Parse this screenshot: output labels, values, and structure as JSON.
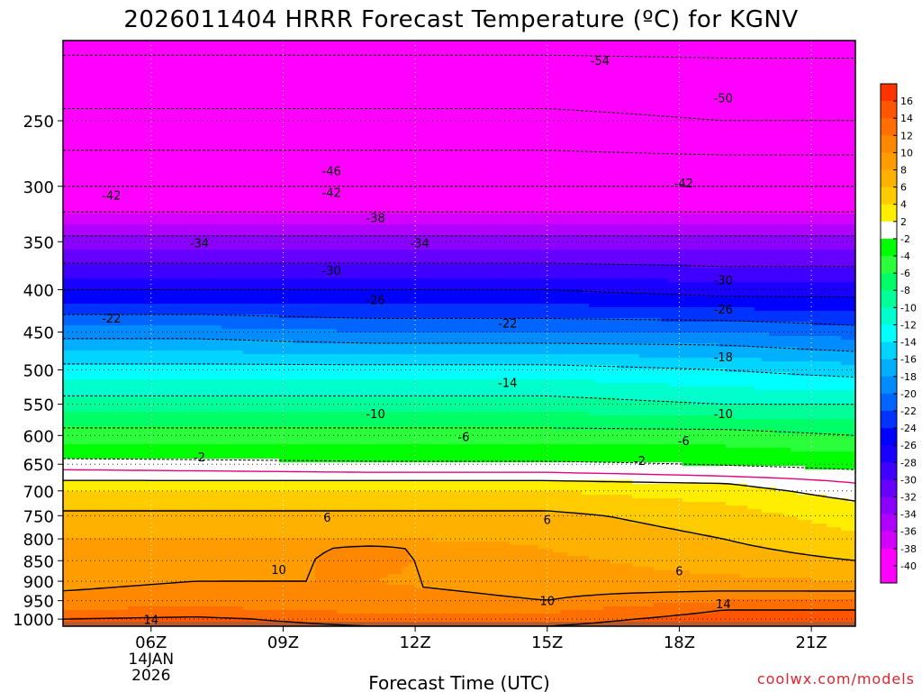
{
  "chart_data": {
    "type": "heatmap",
    "title": "2026011404 HRRR Forecast Temperature (ºC) for KGNV",
    "xlabel": "Forecast Time (UTC)",
    "ylabel": "",
    "x_ticks": [
      {
        "hour": 6,
        "label": "06Z",
        "sub1": "14JAN",
        "sub2": "2026"
      },
      {
        "hour": 9,
        "label": "09Z",
        "sub1": "",
        "sub2": ""
      },
      {
        "hour": 12,
        "label": "12Z",
        "sub1": "",
        "sub2": ""
      },
      {
        "hour": 15,
        "label": "15Z",
        "sub1": "",
        "sub2": ""
      },
      {
        "hour": 18,
        "label": "18Z",
        "sub1": "",
        "sub2": ""
      },
      {
        "hour": 21,
        "label": "21Z",
        "sub1": "",
        "sub2": ""
      }
    ],
    "xlim": [
      4,
      22
    ],
    "y_ticks": [
      250,
      300,
      350,
      400,
      450,
      500,
      550,
      600,
      650,
      700,
      750,
      800,
      850,
      900,
      950,
      1000
    ],
    "ylim_hpa": [
      1020,
      200
    ],
    "y_scale": "log-pressure",
    "grid": true,
    "colorbar": {
      "levels": [
        16,
        14,
        12,
        10,
        8,
        6,
        4,
        2,
        -2,
        -4,
        -6,
        -8,
        -10,
        -12,
        -14,
        -16,
        -18,
        -20,
        -22,
        -24,
        -26,
        -28,
        -30,
        -32,
        -34,
        -36,
        -38,
        -40
      ],
      "bin_colors": [
        "#ff3300",
        "#ff5500",
        "#ff6e00",
        "#ff8800",
        "#ff9d00",
        "#ffb100",
        "#ffcc00",
        "#ffee00",
        "#ffffff",
        "#00ff00",
        "#2bff3b",
        "#00ff66",
        "#00ff99",
        "#00ffcc",
        "#00ffff",
        "#00d4ff",
        "#00b0ff",
        "#008cff",
        "#0066ff",
        "#0033ff",
        "#0000ff",
        "#1a00ff",
        "#3f00ff",
        "#6600ff",
        "#8c00ff",
        "#b000ff",
        "#d400ff",
        "#ff00ff",
        "#ff00ff"
      ]
    },
    "ground_color": "#b05a36",
    "temperature_profiles": [
      {
        "hour": 4,
        "levels": [
          {
            "p": 1020,
            "t": 15
          },
          {
            "p": 1000,
            "t": 14
          },
          {
            "p": 975,
            "t": 12
          },
          {
            "p": 950,
            "t": 11
          },
          {
            "p": 925,
            "t": 10
          },
          {
            "p": 900,
            "t": 9.5
          },
          {
            "p": 875,
            "t": 9
          },
          {
            "p": 850,
            "t": 8.5
          },
          {
            "p": 800,
            "t": 8
          },
          {
            "p": 750,
            "t": 6.5
          },
          {
            "p": 700,
            "t": 4
          },
          {
            "p": 680,
            "t": 2
          },
          {
            "p": 660,
            "t": 0
          },
          {
            "p": 640,
            "t": -2
          },
          {
            "p": 600,
            "t": -5
          },
          {
            "p": 550,
            "t": -9
          },
          {
            "p": 500,
            "t": -13
          },
          {
            "p": 450,
            "t": -19
          },
          {
            "p": 400,
            "t": -26
          },
          {
            "p": 350,
            "t": -33
          },
          {
            "p": 300,
            "t": -42
          },
          {
            "p": 250,
            "t": -49
          },
          {
            "p": 200,
            "t": -55
          }
        ]
      },
      {
        "hour": 7,
        "levels": [
          {
            "p": 1020,
            "t": 15
          },
          {
            "p": 1000,
            "t": 14.5
          },
          {
            "p": 975,
            "t": 12.5
          },
          {
            "p": 950,
            "t": 11
          },
          {
            "p": 925,
            "t": 10.5
          },
          {
            "p": 900,
            "t": 10
          },
          {
            "p": 875,
            "t": 9.5
          },
          {
            "p": 850,
            "t": 9
          },
          {
            "p": 800,
            "t": 8
          },
          {
            "p": 750,
            "t": 6.5
          },
          {
            "p": 700,
            "t": 4
          },
          {
            "p": 680,
            "t": 2
          },
          {
            "p": 662,
            "t": 0
          },
          {
            "p": 642,
            "t": -2
          },
          {
            "p": 600,
            "t": -5
          },
          {
            "p": 550,
            "t": -9
          },
          {
            "p": 500,
            "t": -13
          },
          {
            "p": 450,
            "t": -19
          },
          {
            "p": 400,
            "t": -26
          },
          {
            "p": 350,
            "t": -33
          },
          {
            "p": 300,
            "t": -42
          },
          {
            "p": 250,
            "t": -49
          },
          {
            "p": 200,
            "t": -55
          }
        ]
      },
      {
        "hour": 11,
        "levels": [
          {
            "p": 1020,
            "t": 14
          },
          {
            "p": 1000,
            "t": 13
          },
          {
            "p": 975,
            "t": 11.5
          },
          {
            "p": 950,
            "t": 11
          },
          {
            "p": 925,
            "t": 10.5
          },
          {
            "p": 900,
            "t": 10
          },
          {
            "p": 850,
            "t": 10.5
          },
          {
            "p": 820,
            "t": 10.5
          },
          {
            "p": 800,
            "t": 8
          },
          {
            "p": 750,
            "t": 6.5
          },
          {
            "p": 700,
            "t": 4
          },
          {
            "p": 680,
            "t": 2
          },
          {
            "p": 665,
            "t": 0
          },
          {
            "p": 645,
            "t": -2
          },
          {
            "p": 600,
            "t": -5
          },
          {
            "p": 550,
            "t": -9
          },
          {
            "p": 500,
            "t": -13
          },
          {
            "p": 450,
            "t": -20
          },
          {
            "p": 400,
            "t": -26
          },
          {
            "p": 350,
            "t": -33
          },
          {
            "p": 300,
            "t": -42
          },
          {
            "p": 250,
            "t": -49
          },
          {
            "p": 200,
            "t": -55
          }
        ]
      },
      {
        "hour": 15,
        "levels": [
          {
            "p": 1020,
            "t": 14
          },
          {
            "p": 1000,
            "t": 13
          },
          {
            "p": 975,
            "t": 11.5
          },
          {
            "p": 950,
            "t": 10
          },
          {
            "p": 925,
            "t": 9.5
          },
          {
            "p": 900,
            "t": 9
          },
          {
            "p": 850,
            "t": 8.5
          },
          {
            "p": 800,
            "t": 7.5
          },
          {
            "p": 750,
            "t": 6.5
          },
          {
            "p": 700,
            "t": 4
          },
          {
            "p": 680,
            "t": 2
          },
          {
            "p": 665,
            "t": 0
          },
          {
            "p": 645,
            "t": -2
          },
          {
            "p": 600,
            "t": -5
          },
          {
            "p": 550,
            "t": -9
          },
          {
            "p": 500,
            "t": -13
          },
          {
            "p": 450,
            "t": -20
          },
          {
            "p": 400,
            "t": -26
          },
          {
            "p": 350,
            "t": -33
          },
          {
            "p": 300,
            "t": -42
          },
          {
            "p": 250,
            "t": -49
          },
          {
            "p": 200,
            "t": -55
          }
        ]
      },
      {
        "hour": 19,
        "levels": [
          {
            "p": 1020,
            "t": 15.5
          },
          {
            "p": 1000,
            "t": 15
          },
          {
            "p": 975,
            "t": 14
          },
          {
            "p": 950,
            "t": 12
          },
          {
            "p": 925,
            "t": 10
          },
          {
            "p": 900,
            "t": 8.5
          },
          {
            "p": 850,
            "t": 7
          },
          {
            "p": 800,
            "t": 6
          },
          {
            "p": 750,
            "t": 5
          },
          {
            "p": 700,
            "t": 3
          },
          {
            "p": 685,
            "t": 2
          },
          {
            "p": 672,
            "t": 0
          },
          {
            "p": 652,
            "t": -2
          },
          {
            "p": 600,
            "t": -5
          },
          {
            "p": 550,
            "t": -10
          },
          {
            "p": 500,
            "t": -14
          },
          {
            "p": 450,
            "t": -20
          },
          {
            "p": 400,
            "t": -27
          },
          {
            "p": 350,
            "t": -33
          },
          {
            "p": 300,
            "t": -42
          },
          {
            "p": 250,
            "t": -50
          },
          {
            "p": 200,
            "t": -55
          }
        ]
      },
      {
        "hour": 22,
        "levels": [
          {
            "p": 1020,
            "t": 16
          },
          {
            "p": 1000,
            "t": 15
          },
          {
            "p": 975,
            "t": 14
          },
          {
            "p": 950,
            "t": 12
          },
          {
            "p": 925,
            "t": 10
          },
          {
            "p": 900,
            "t": 8
          },
          {
            "p": 850,
            "t": 6
          },
          {
            "p": 800,
            "t": 4.5
          },
          {
            "p": 750,
            "t": 3
          },
          {
            "p": 720,
            "t": 2
          },
          {
            "p": 700,
            "t": 1
          },
          {
            "p": 685,
            "t": 0
          },
          {
            "p": 660,
            "t": -2
          },
          {
            "p": 600,
            "t": -6
          },
          {
            "p": 550,
            "t": -10
          },
          {
            "p": 500,
            "t": -15
          },
          {
            "p": 450,
            "t": -21
          },
          {
            "p": 400,
            "t": -27
          },
          {
            "p": 350,
            "t": -33
          },
          {
            "p": 300,
            "t": -42
          },
          {
            "p": 250,
            "t": -50
          },
          {
            "p": 200,
            "t": -55
          }
        ]
      }
    ],
    "contour_labels": [
      {
        "text": "-54",
        "hour": 16.2,
        "p": 212
      },
      {
        "text": "-50",
        "hour": 19.0,
        "p": 235
      },
      {
        "text": "-46",
        "hour": 10.1,
        "p": 288
      },
      {
        "text": "-42",
        "hour": 5.1,
        "p": 308
      },
      {
        "text": "-42",
        "hour": 10.1,
        "p": 306
      },
      {
        "text": "-42",
        "hour": 18.1,
        "p": 298
      },
      {
        "text": "-38",
        "hour": 11.1,
        "p": 328
      },
      {
        "text": "-34",
        "hour": 7.1,
        "p": 352
      },
      {
        "text": "-34",
        "hour": 12.1,
        "p": 352
      },
      {
        "text": "-30",
        "hour": 10.1,
        "p": 380
      },
      {
        "text": "-30",
        "hour": 19.0,
        "p": 390
      },
      {
        "text": "-26",
        "hour": 11.1,
        "p": 412
      },
      {
        "text": "-26",
        "hour": 19.0,
        "p": 423
      },
      {
        "text": "-22",
        "hour": 5.1,
        "p": 434
      },
      {
        "text": "-22",
        "hour": 14.1,
        "p": 440
      },
      {
        "text": "-18",
        "hour": 19.0,
        "p": 483
      },
      {
        "text": "-14",
        "hour": 14.1,
        "p": 519
      },
      {
        "text": "-10",
        "hour": 11.1,
        "p": 566
      },
      {
        "text": "-10",
        "hour": 19.0,
        "p": 566
      },
      {
        "text": "-6",
        "hour": 13.1,
        "p": 603
      },
      {
        "text": "-6",
        "hour": 18.1,
        "p": 610
      },
      {
        "text": "-2",
        "hour": 7.1,
        "p": 638
      },
      {
        "text": "-2",
        "hour": 17.1,
        "p": 645
      },
      {
        "text": "6",
        "hour": 10.0,
        "p": 755
      },
      {
        "text": "6",
        "hour": 15.0,
        "p": 760
      },
      {
        "text": "6",
        "hour": 18.0,
        "p": 877
      },
      {
        "text": "10",
        "hour": 8.9,
        "p": 873
      },
      {
        "text": "10",
        "hour": 15.0,
        "p": 952
      },
      {
        "text": "14",
        "hour": 6.0,
        "p": 1003
      },
      {
        "text": "14",
        "hour": 19.0,
        "p": 960
      }
    ],
    "dashed_contours": [
      -54,
      -50,
      -46,
      -42,
      -38,
      -34,
      -30,
      -26,
      -22,
      -18,
      -14,
      -10,
      -6,
      -2
    ],
    "solid_contours": [
      2,
      6,
      10,
      14
    ],
    "freezing_line_color": "#e6007e",
    "credit": "coolwx.com/models"
  }
}
